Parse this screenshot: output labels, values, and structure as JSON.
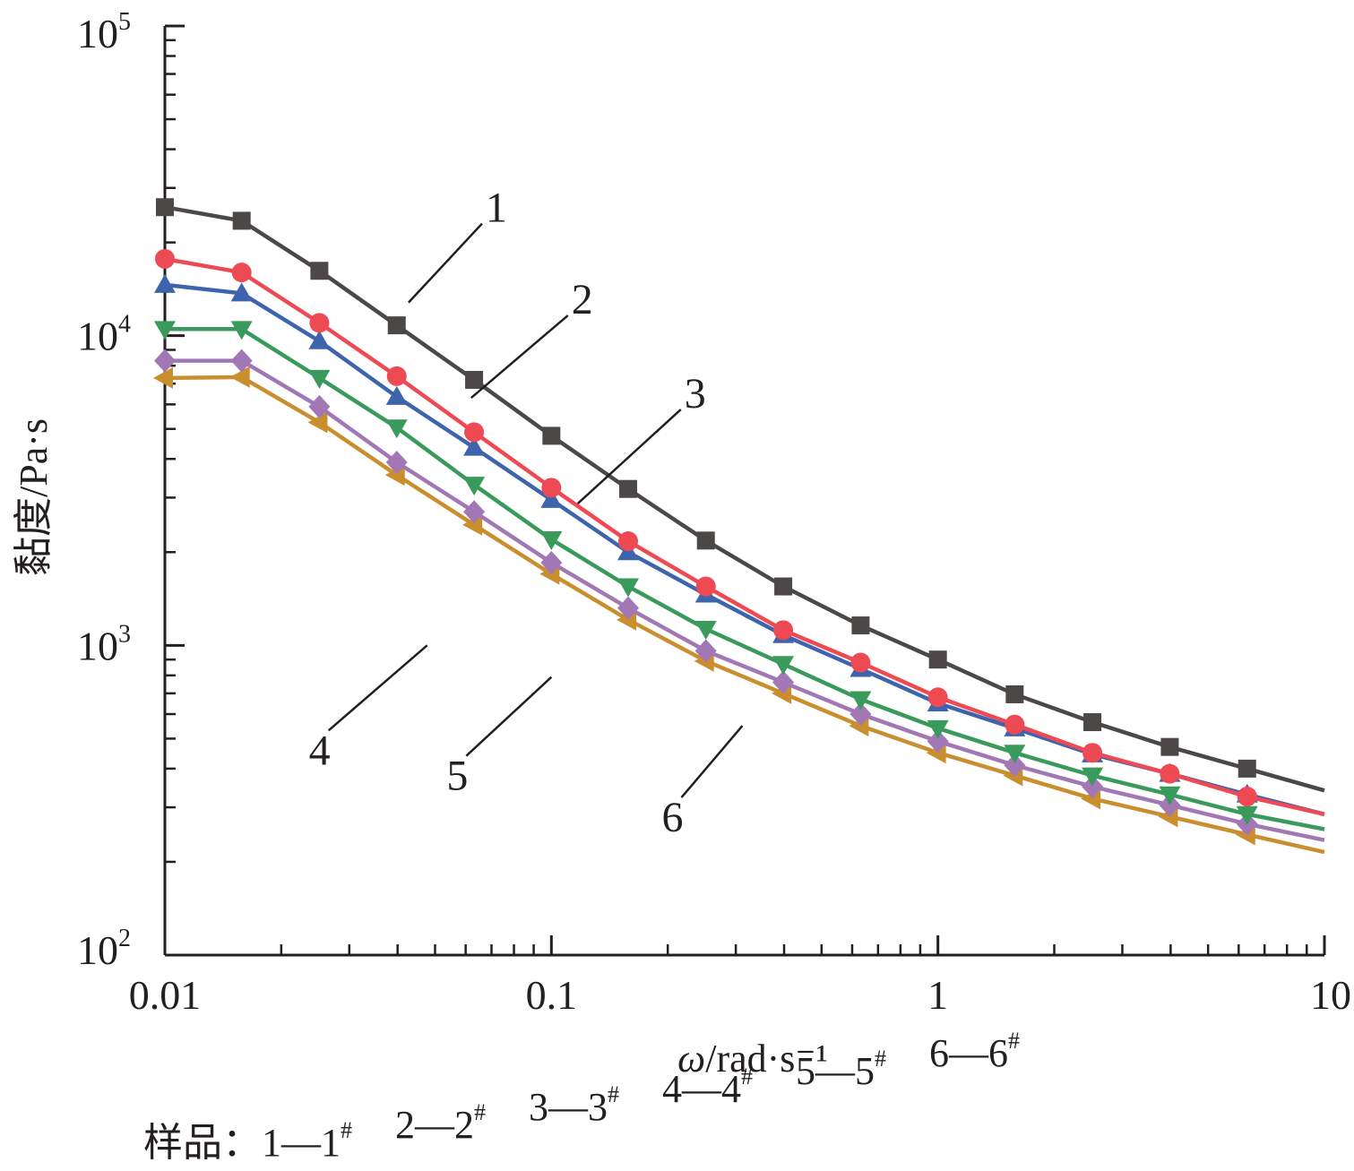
{
  "chart_data": {
    "type": "line",
    "xlabel": "ω/rad·s⁻¹",
    "ylabel": "黏度/Pa·s",
    "x_scale": "log",
    "y_scale": "log",
    "xlim": [
      0.01,
      10
    ],
    "ylim": [
      100,
      100000
    ],
    "x_ticks": [
      {
        "value": 0.01,
        "label": "0.01"
      },
      {
        "value": 0.1,
        "label": "0.1"
      },
      {
        "value": 1,
        "label": "1"
      },
      {
        "value": 10,
        "label": "10"
      }
    ],
    "y_ticks": [
      {
        "value": 100,
        "base": "10",
        "exp": "2"
      },
      {
        "value": 1000,
        "base": "10",
        "exp": "3"
      },
      {
        "value": 10000,
        "base": "10",
        "exp": "4"
      },
      {
        "value": 100000,
        "base": "10",
        "exp": "5"
      }
    ],
    "grid": false,
    "x": [
      0.01,
      0.0158,
      0.0251,
      0.0398,
      0.0631,
      0.1,
      0.158,
      0.251,
      0.398,
      0.631,
      1.0,
      1.58,
      2.51,
      3.98,
      6.31,
      10
    ],
    "series": [
      {
        "name": "1",
        "color": "#4d4848",
        "marker": "square",
        "values": [
          26000,
          23500,
          16200,
          10800,
          7200,
          4750,
          3200,
          2180,
          1550,
          1160,
          900,
          695,
          565,
          470,
          400,
          340
        ]
      },
      {
        "name": "2",
        "color": "#ee4a53",
        "marker": "circle",
        "values": [
          17700,
          16000,
          11000,
          7400,
          4880,
          3230,
          2170,
          1550,
          1120,
          880,
          680,
          555,
          450,
          385,
          325,
          285
        ]
      },
      {
        "name": "3",
        "color": "#3e64ad",
        "marker": "triangle-up",
        "values": [
          14600,
          13700,
          9600,
          6350,
          4350,
          2950,
          2000,
          1460,
          1080,
          840,
          650,
          540,
          445,
          385,
          330,
          285
        ]
      },
      {
        "name": "4",
        "color": "#3a9a5b",
        "marker": "triangle-down",
        "values": [
          10500,
          10500,
          7300,
          5050,
          3300,
          2200,
          1550,
          1130,
          870,
          670,
          540,
          450,
          380,
          330,
          285,
          255
        ]
      },
      {
        "name": "5",
        "color": "#a277b5",
        "marker": "diamond",
        "values": [
          8300,
          8300,
          5900,
          3900,
          2700,
          1850,
          1320,
          960,
          760,
          600,
          490,
          410,
          350,
          305,
          265,
          235
        ]
      },
      {
        "name": "6",
        "color": "#c98f2f",
        "marker": "triangle-left",
        "values": [
          7300,
          7350,
          5250,
          3550,
          2450,
          1700,
          1210,
          890,
          700,
          550,
          450,
          380,
          320,
          280,
          245,
          215
        ]
      }
    ],
    "curve_labels": [
      {
        "text": "1",
        "series": 0,
        "x": 0.0427,
        "y": 12800
      },
      {
        "text": "2",
        "series": 1,
        "x": 0.062,
        "y": 6300
      },
      {
        "text": "3",
        "series": 2,
        "x": 0.117,
        "y": 2870
      },
      {
        "text": "4",
        "series": 3,
        "x": 0.0477,
        "y": 1000
      },
      {
        "text": "5",
        "series": 4,
        "x": 0.1,
        "y": 790
      },
      {
        "text": "6",
        "series": 5,
        "x": 0.312,
        "y": 550
      }
    ],
    "legend": {
      "prefix": "样品：",
      "entries": [
        {
          "num": "1",
          "dash": "—",
          "sample": "1",
          "mark": "#"
        },
        {
          "num": "2",
          "dash": "—",
          "sample": "2",
          "mark": "#"
        },
        {
          "num": "3",
          "dash": "—",
          "sample": "3",
          "mark": "#"
        },
        {
          "num": "4",
          "dash": "—",
          "sample": "4",
          "mark": "#"
        },
        {
          "num": "5",
          "dash": "—",
          "sample": "5",
          "mark": "#"
        },
        {
          "num": "6",
          "dash": "—",
          "sample": "6",
          "mark": "#"
        }
      ]
    }
  }
}
